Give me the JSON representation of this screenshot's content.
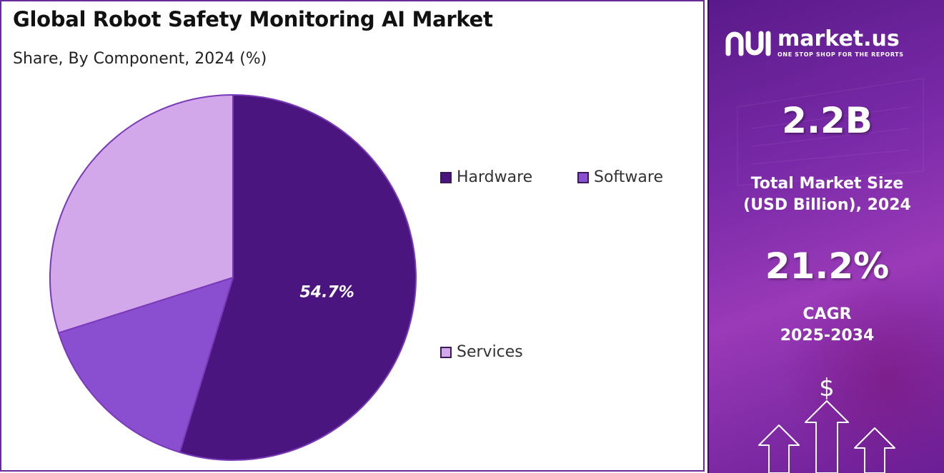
{
  "chart_data": {
    "type": "pie",
    "title": "Global Robot Safety Monitoring AI Market",
    "subtitle": "Share, By Component, 2024 (%)",
    "categories": [
      "Hardware",
      "Software",
      "Services"
    ],
    "values": [
      54.7,
      15.4,
      29.9
    ],
    "data_labels": [
      "54.7%",
      "",
      ""
    ],
    "colors": [
      "#4b1580",
      "#8a4fd0",
      "#d2a8ea"
    ],
    "legend_placement": "right"
  },
  "sidebar": {
    "brand": "market.us",
    "tagline": "ONE STOP SHOP FOR THE REPORTS",
    "market_size_value": "2.2B",
    "market_size_label_1": "Total Market Size",
    "market_size_label_2": "(USD Billion), 2024",
    "cagr_value": "21.2%",
    "cagr_label_1": "CAGR",
    "cagr_label_2": "2025-2034",
    "icon": "dollar-growth-arrows-icon"
  }
}
